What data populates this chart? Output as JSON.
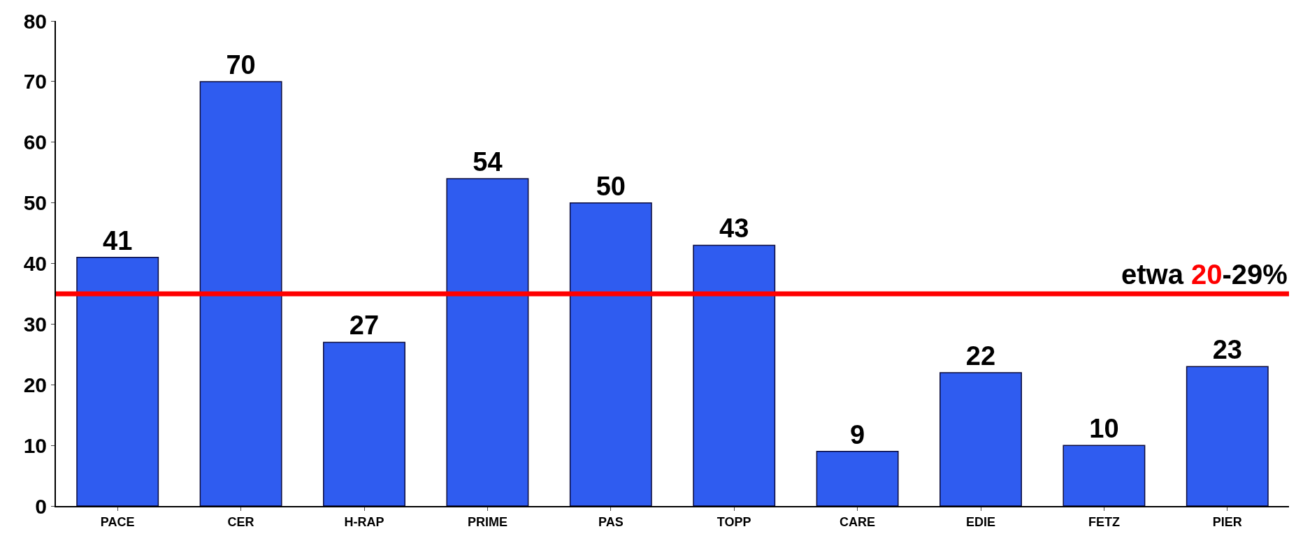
{
  "chart_data": {
    "type": "bar",
    "categories": [
      "PACE",
      "CER",
      "H-RAP",
      "PRIME",
      "PAS",
      "TOPP",
      "CARE",
      "EDIE",
      "FETZ",
      "PIER"
    ],
    "values": [
      41,
      70,
      27,
      54,
      50,
      43,
      9,
      22,
      10,
      23
    ],
    "color": "#2f5cf0",
    "data_labels": true,
    "ylim": [
      0,
      80
    ],
    "yticks": [
      0,
      10,
      20,
      30,
      40,
      50,
      60,
      70,
      80
    ],
    "ref_lines": [
      {
        "axis": "y",
        "value": 35,
        "label": "etwa 20-29%",
        "color": "#ff0000"
      }
    ]
  }
}
